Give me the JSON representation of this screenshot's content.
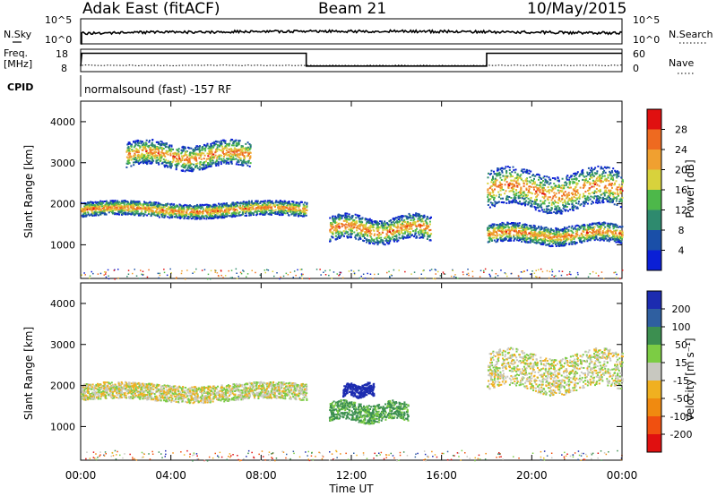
{
  "header": {
    "title": "Adak East (fitACF)",
    "beam": "Beam 21",
    "date": "10/May/2015"
  },
  "status_panels": {
    "nsky": {
      "label": "N.Sky",
      "ytick_top": "10^5",
      "ytick_bottom": "10^0"
    },
    "nsearch": {
      "label": "N.Search",
      "ytick_top": "10^5",
      "ytick_bottom": "10^0"
    },
    "freq": {
      "label": "Freq.",
      "unit": "[MHz]",
      "ytick_top": "18",
      "ytick_bottom": "8"
    },
    "nave": {
      "label": "Nave",
      "ytick_top": "60",
      "ytick_bottom": "0"
    },
    "cpid": {
      "label": "CPID",
      "text": "normalsound (fast) -157 RF"
    }
  },
  "chart_data": [
    {
      "type": "line",
      "name": "status-frequency",
      "x_unit": "UT hours",
      "y_unit": "MHz",
      "ylim": [
        8,
        18
      ],
      "points": [
        [
          0,
          10.5
        ],
        [
          0.05,
          16.2
        ],
        [
          10.0,
          16.2
        ],
        [
          10.0,
          10.5
        ],
        [
          18.0,
          10.5
        ],
        [
          18.0,
          16.2
        ],
        [
          24,
          16.2
        ]
      ]
    },
    {
      "type": "heatmap",
      "title": "",
      "xlabel": "",
      "ylabel": "Slant Range [km]",
      "xlim": [
        0,
        24
      ],
      "ylim": [
        180,
        4500
      ],
      "yticks": [
        1000,
        2000,
        3000,
        4000
      ],
      "colorbar": {
        "label": "Power [dB]",
        "ticks": [
          "4",
          "8",
          "12",
          "16",
          "20",
          "24",
          "28"
        ],
        "colors": [
          "#0a1fd6",
          "#1a4fa8",
          "#2e8a6e",
          "#4db84a",
          "#d8d23c",
          "#f0a030",
          "#ee6a20",
          "#e01010"
        ]
      },
      "features": [
        {
          "name": "e-region-band",
          "t_start": 0,
          "t_end": 10,
          "range_start": 1700,
          "range_end": 2050
        },
        {
          "name": "far-echo-patch",
          "t_start": 2.0,
          "t_end": 7.5,
          "range_start": 2900,
          "range_end": 3500
        },
        {
          "name": "midday-patch",
          "t_start": 11.0,
          "t_end": 15.5,
          "range_start": 1100,
          "range_end": 1700
        },
        {
          "name": "evening-arcs",
          "t_start": 18.0,
          "t_end": 24,
          "range_start": 1900,
          "range_end": 2800
        },
        {
          "name": "evening-lower-band",
          "t_start": 18.0,
          "t_end": 24,
          "range_start": 1050,
          "range_end": 1500
        }
      ]
    },
    {
      "type": "heatmap",
      "title": "",
      "xlabel": "Time UT",
      "ylabel": "Slant Range [km]",
      "xlim": [
        0,
        24
      ],
      "ylim": [
        180,
        4500
      ],
      "xticks": [
        "00:00",
        "04:00",
        "08:00",
        "12:00",
        "16:00",
        "20:00",
        "00:00"
      ],
      "yticks": [
        1000,
        2000,
        3000,
        4000
      ],
      "colorbar": {
        "label": "Velocity [m s⁻¹]",
        "ticks": [
          "200",
          "100",
          "50",
          "15",
          "-15",
          "-50",
          "-100",
          "-200"
        ],
        "colors": [
          "#1c2bb0",
          "#2f5fa0",
          "#3c8f50",
          "#7ccc44",
          "#c8c8c0",
          "#f0b020",
          "#f08a10",
          "#f05010",
          "#e01010"
        ]
      },
      "features": [
        {
          "name": "ground-scatter-band",
          "t_start": 0,
          "t_end": 10,
          "range_start": 1650,
          "range_end": 2050,
          "velocity": 0
        },
        {
          "name": "blue-patch",
          "t_start": 11.6,
          "t_end": 13.0,
          "range_start": 1750,
          "range_end": 2050,
          "velocity": 180
        },
        {
          "name": "green-patch",
          "t_start": 11.0,
          "t_end": 14.5,
          "range_start": 1150,
          "range_end": 1600,
          "velocity": 40
        },
        {
          "name": "evening-grey-arcs",
          "t_start": 18.0,
          "t_end": 24,
          "range_start": 1900,
          "range_end": 2800,
          "velocity": 0
        }
      ]
    }
  ]
}
